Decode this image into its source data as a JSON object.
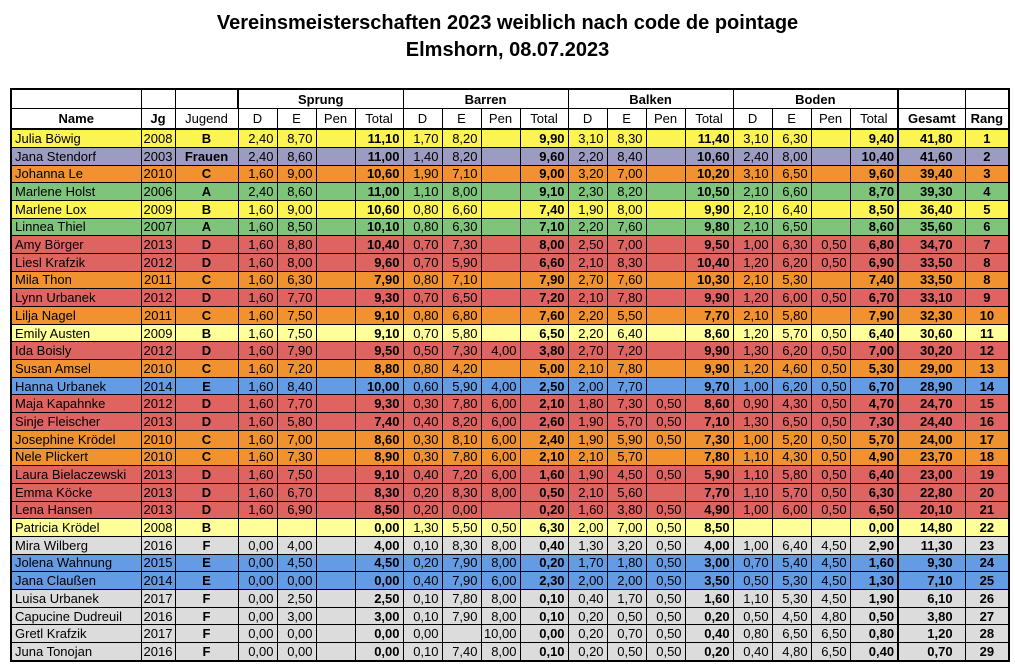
{
  "title": {
    "line1": "Vereinsmeisterschaften 2023 weiblich nach code de pointage",
    "line2": "Elmshorn, 08.07.2023"
  },
  "colors": {
    "yellow": "#FCF452",
    "light_yellow": "#FFFF99",
    "purple": "#9C9BC2",
    "orange": "#F0922F",
    "green": "#7EC47B",
    "red": "#DE6361",
    "blue": "#649BE5",
    "gray": "#DCDCDC"
  },
  "table": {
    "headers": {
      "name": "Name",
      "jg": "Jg",
      "jugend": "Jugend",
      "groups": [
        "Sprung",
        "Barren",
        "Balken",
        "Boden"
      ],
      "subs": [
        "D",
        "E",
        "Pen",
        "Total"
      ],
      "gesamt": "Gesamt",
      "rang": "Rang"
    },
    "rows": [
      {
        "name": "Julia Böwig",
        "jg": "2008",
        "jugend": "B",
        "color": "yellow",
        "scores": [
          [
            "2,40",
            "8,70",
            "",
            "11,10"
          ],
          [
            "1,70",
            "8,20",
            "",
            "9,90"
          ],
          [
            "3,10",
            "8,30",
            "",
            "11,40"
          ],
          [
            "3,10",
            "6,30",
            "",
            "9,40"
          ]
        ],
        "gesamt": "41,80",
        "rang": "1"
      },
      {
        "name": "Jana Stendorf",
        "jg": "2003",
        "jugend": "Frauen",
        "color": "purple",
        "scores": [
          [
            "2,40",
            "8,60",
            "",
            "11,00"
          ],
          [
            "1,40",
            "8,20",
            "",
            "9,60"
          ],
          [
            "2,20",
            "8,40",
            "",
            "10,60"
          ],
          [
            "2,40",
            "8,00",
            "",
            "10,40"
          ]
        ],
        "gesamt": "41,60",
        "rang": "2"
      },
      {
        "name": "Johanna Le",
        "jg": "2010",
        "jugend": "C",
        "color": "orange",
        "scores": [
          [
            "1,60",
            "9,00",
            "",
            "10,60"
          ],
          [
            "1,90",
            "7,10",
            "",
            "9,00"
          ],
          [
            "3,20",
            "7,00",
            "",
            "10,20"
          ],
          [
            "3,10",
            "6,50",
            "",
            "9,60"
          ]
        ],
        "gesamt": "39,40",
        "rang": "3"
      },
      {
        "name": "Marlene Holst",
        "jg": "2006",
        "jugend": "A",
        "color": "green",
        "scores": [
          [
            "2,40",
            "8,60",
            "",
            "11,00"
          ],
          [
            "1,10",
            "8,00",
            "",
            "9,10"
          ],
          [
            "2,30",
            "8,20",
            "",
            "10,50"
          ],
          [
            "2,10",
            "6,60",
            "",
            "8,70"
          ]
        ],
        "gesamt": "39,30",
        "rang": "4"
      },
      {
        "name": "Marlene Lox",
        "jg": "2009",
        "jugend": "B",
        "color": "yellow",
        "scores": [
          [
            "1,60",
            "9,00",
            "",
            "10,60"
          ],
          [
            "0,80",
            "6,60",
            "",
            "7,40"
          ],
          [
            "1,90",
            "8,00",
            "",
            "9,90"
          ],
          [
            "2,10",
            "6,40",
            "",
            "8,50"
          ]
        ],
        "gesamt": "36,40",
        "rang": "5"
      },
      {
        "name": "Linnea Thiel",
        "jg": "2007",
        "jugend": "A",
        "color": "green",
        "scores": [
          [
            "1,60",
            "8,50",
            "",
            "10,10"
          ],
          [
            "0,80",
            "6,30",
            "",
            "7,10"
          ],
          [
            "2,20",
            "7,60",
            "",
            "9,80"
          ],
          [
            "2,10",
            "6,50",
            "",
            "8,60"
          ]
        ],
        "gesamt": "35,60",
        "rang": "6"
      },
      {
        "name": "Amy Börger",
        "jg": "2013",
        "jugend": "D",
        "color": "red",
        "scores": [
          [
            "1,60",
            "8,80",
            "",
            "10,40"
          ],
          [
            "0,70",
            "7,30",
            "",
            "8,00"
          ],
          [
            "2,50",
            "7,00",
            "",
            "9,50"
          ],
          [
            "1,00",
            "6,30",
            "0,50",
            "6,80"
          ]
        ],
        "gesamt": "34,70",
        "rang": "7"
      },
      {
        "name": "Liesl Krafzik",
        "jg": "2012",
        "jugend": "D",
        "color": "red",
        "scores": [
          [
            "1,60",
            "8,00",
            "",
            "9,60"
          ],
          [
            "0,70",
            "5,90",
            "",
            "6,60"
          ],
          [
            "2,10",
            "8,30",
            "",
            "10,40"
          ],
          [
            "1,20",
            "6,20",
            "0,50",
            "6,90"
          ]
        ],
        "gesamt": "33,50",
        "rang": "8"
      },
      {
        "name": "Mila Thon",
        "jg": "2011",
        "jugend": "C",
        "color": "orange",
        "scores": [
          [
            "1,60",
            "6,30",
            "",
            "7,90"
          ],
          [
            "0,80",
            "7,10",
            "",
            "7,90"
          ],
          [
            "2,70",
            "7,60",
            "",
            "10,30"
          ],
          [
            "2,10",
            "5,30",
            "",
            "7,40"
          ]
        ],
        "gesamt": "33,50",
        "rang": "8"
      },
      {
        "name": "Lynn Urbanek",
        "jg": "2012",
        "jugend": "D",
        "color": "red",
        "scores": [
          [
            "1,60",
            "7,70",
            "",
            "9,30"
          ],
          [
            "0,70",
            "6,50",
            "",
            "7,20"
          ],
          [
            "2,10",
            "7,80",
            "",
            "9,90"
          ],
          [
            "1,20",
            "6,00",
            "0,50",
            "6,70"
          ]
        ],
        "gesamt": "33,10",
        "rang": "9"
      },
      {
        "name": "Lilja Nagel",
        "jg": "2011",
        "jugend": "C",
        "color": "orange",
        "scores": [
          [
            "1,60",
            "7,50",
            "",
            "9,10"
          ],
          [
            "0,80",
            "6,80",
            "",
            "7,60"
          ],
          [
            "2,20",
            "5,50",
            "",
            "7,70"
          ],
          [
            "2,10",
            "5,80",
            "",
            "7,90"
          ]
        ],
        "gesamt": "32,30",
        "rang": "10"
      },
      {
        "name": "Emily Austen",
        "jg": "2009",
        "jugend": "B",
        "color": "light_yellow",
        "scores": [
          [
            "1,60",
            "7,50",
            "",
            "9,10"
          ],
          [
            "0,70",
            "5,80",
            "",
            "6,50"
          ],
          [
            "2,20",
            "6,40",
            "",
            "8,60"
          ],
          [
            "1,20",
            "5,70",
            "0,50",
            "6,40"
          ]
        ],
        "gesamt": "30,60",
        "rang": "11"
      },
      {
        "name": "Ida Boisly",
        "jg": "2012",
        "jugend": "D",
        "color": "red",
        "scores": [
          [
            "1,60",
            "7,90",
            "",
            "9,50"
          ],
          [
            "0,50",
            "7,30",
            "4,00",
            "3,80"
          ],
          [
            "2,70",
            "7,20",
            "",
            "9,90"
          ],
          [
            "1,30",
            "6,20",
            "0,50",
            "7,00"
          ]
        ],
        "gesamt": "30,20",
        "rang": "12"
      },
      {
        "name": "Susan Amsel",
        "jg": "2010",
        "jugend": "C",
        "color": "orange",
        "scores": [
          [
            "1,60",
            "7,20",
            "",
            "8,80"
          ],
          [
            "0,80",
            "4,20",
            "",
            "5,00"
          ],
          [
            "2,10",
            "7,80",
            "",
            "9,90"
          ],
          [
            "1,20",
            "4,60",
            "0,50",
            "5,30"
          ]
        ],
        "gesamt": "29,00",
        "rang": "13"
      },
      {
        "name": "Hanna Urbanek",
        "jg": "2014",
        "jugend": "E",
        "color": "blue",
        "scores": [
          [
            "1,60",
            "8,40",
            "",
            "10,00"
          ],
          [
            "0,60",
            "5,90",
            "4,00",
            "2,50"
          ],
          [
            "2,00",
            "7,70",
            "",
            "9,70"
          ],
          [
            "1,00",
            "6,20",
            "0,50",
            "6,70"
          ]
        ],
        "gesamt": "28,90",
        "rang": "14"
      },
      {
        "name": "Maja Kapahnke",
        "jg": "2012",
        "jugend": "D",
        "color": "red",
        "scores": [
          [
            "1,60",
            "7,70",
            "",
            "9,30"
          ],
          [
            "0,30",
            "7,80",
            "6,00",
            "2,10"
          ],
          [
            "1,80",
            "7,30",
            "0,50",
            "8,60"
          ],
          [
            "0,90",
            "4,30",
            "0,50",
            "4,70"
          ]
        ],
        "gesamt": "24,70",
        "rang": "15"
      },
      {
        "name": "Sinje Fleischer",
        "jg": "2013",
        "jugend": "D",
        "color": "red",
        "scores": [
          [
            "1,60",
            "5,80",
            "",
            "7,40"
          ],
          [
            "0,40",
            "8,20",
            "6,00",
            "2,60"
          ],
          [
            "1,90",
            "5,70",
            "0,50",
            "7,10"
          ],
          [
            "1,30",
            "6,50",
            "0,50",
            "7,30"
          ]
        ],
        "gesamt": "24,40",
        "rang": "16"
      },
      {
        "name": "Josephine Krödel",
        "jg": "2010",
        "jugend": "C",
        "color": "orange",
        "scores": [
          [
            "1,60",
            "7,00",
            "",
            "8,60"
          ],
          [
            "0,30",
            "8,10",
            "6,00",
            "2,40"
          ],
          [
            "1,90",
            "5,90",
            "0,50",
            "7,30"
          ],
          [
            "1,00",
            "5,20",
            "0,50",
            "5,70"
          ]
        ],
        "gesamt": "24,00",
        "rang": "17"
      },
      {
        "name": "Nele Plickert",
        "jg": "2010",
        "jugend": "C",
        "color": "orange",
        "scores": [
          [
            "1,60",
            "7,30",
            "",
            "8,90"
          ],
          [
            "0,30",
            "7,80",
            "6,00",
            "2,10"
          ],
          [
            "2,10",
            "5,70",
            "",
            "7,80"
          ],
          [
            "1,10",
            "4,30",
            "0,50",
            "4,90"
          ]
        ],
        "gesamt": "23,70",
        "rang": "18"
      },
      {
        "name": "Laura Bielaczewski",
        "jg": "2013",
        "jugend": "D",
        "color": "red",
        "scores": [
          [
            "1,60",
            "7,50",
            "",
            "9,10"
          ],
          [
            "0,40",
            "7,20",
            "6,00",
            "1,60"
          ],
          [
            "1,90",
            "4,50",
            "0,50",
            "5,90"
          ],
          [
            "1,10",
            "5,80",
            "0,50",
            "6,40"
          ]
        ],
        "gesamt": "23,00",
        "rang": "19"
      },
      {
        "name": "Emma Köcke",
        "jg": "2013",
        "jugend": "D",
        "color": "red",
        "scores": [
          [
            "1,60",
            "6,70",
            "",
            "8,30"
          ],
          [
            "0,20",
            "8,30",
            "8,00",
            "0,50"
          ],
          [
            "2,10",
            "5,60",
            "",
            "7,70"
          ],
          [
            "1,10",
            "5,70",
            "0,50",
            "6,30"
          ]
        ],
        "gesamt": "22,80",
        "rang": "20"
      },
      {
        "name": "Lena Hansen",
        "jg": "2013",
        "jugend": "D",
        "color": "red",
        "scores": [
          [
            "1,60",
            "6,90",
            "",
            "8,50"
          ],
          [
            "0,20",
            "0,00",
            "",
            "0,20"
          ],
          [
            "1,60",
            "3,80",
            "0,50",
            "4,90"
          ],
          [
            "1,00",
            "6,00",
            "0,50",
            "6,50"
          ]
        ],
        "gesamt": "20,10",
        "rang": "21"
      },
      {
        "name": "Patricia Krödel",
        "jg": "2008",
        "jugend": "B",
        "color": "light_yellow",
        "scores": [
          [
            "",
            "",
            "",
            "0,00"
          ],
          [
            "1,30",
            "5,50",
            "0,50",
            "6,30"
          ],
          [
            "2,00",
            "7,00",
            "0,50",
            "8,50"
          ],
          [
            "",
            "",
            "",
            "0,00"
          ]
        ],
        "gesamt": "14,80",
        "rang": "22"
      },
      {
        "name": "Mira Wilberg",
        "jg": "2016",
        "jugend": "F",
        "color": "gray",
        "scores": [
          [
            "0,00",
            "4,00",
            "",
            "4,00"
          ],
          [
            "0,10",
            "8,30",
            "8,00",
            "0,40"
          ],
          [
            "1,30",
            "3,20",
            "0,50",
            "4,00"
          ],
          [
            "1,00",
            "6,40",
            "4,50",
            "2,90"
          ]
        ],
        "gesamt": "11,30",
        "rang": "23"
      },
      {
        "name": "Jolena Wahnung",
        "jg": "2015",
        "jugend": "E",
        "color": "blue",
        "scores": [
          [
            "0,00",
            "4,50",
            "",
            "4,50"
          ],
          [
            "0,20",
            "7,90",
            "8,00",
            "0,20"
          ],
          [
            "1,70",
            "1,80",
            "0,50",
            "3,00"
          ],
          [
            "0,70",
            "5,40",
            "4,50",
            "1,60"
          ]
        ],
        "gesamt": "9,30",
        "rang": "24"
      },
      {
        "name": "Jana Claußen",
        "jg": "2014",
        "jugend": "E",
        "color": "blue",
        "scores": [
          [
            "0,00",
            "0,00",
            "",
            "0,00"
          ],
          [
            "0,40",
            "7,90",
            "6,00",
            "2,30"
          ],
          [
            "2,00",
            "2,00",
            "0,50",
            "3,50"
          ],
          [
            "0,50",
            "5,30",
            "4,50",
            "1,30"
          ]
        ],
        "gesamt": "7,10",
        "rang": "25"
      },
      {
        "name": "Luisa Urbanek",
        "jg": "2017",
        "jugend": "F",
        "color": "gray",
        "scores": [
          [
            "0,00",
            "2,50",
            "",
            "2,50"
          ],
          [
            "0,10",
            "7,80",
            "8,00",
            "0,10"
          ],
          [
            "0,40",
            "1,70",
            "0,50",
            "1,60"
          ],
          [
            "1,10",
            "5,30",
            "4,50",
            "1,90"
          ]
        ],
        "gesamt": "6,10",
        "rang": "26"
      },
      {
        "name": "Capucine Dudreuil",
        "jg": "2016",
        "jugend": "F",
        "color": "gray",
        "scores": [
          [
            "0,00",
            "3,00",
            "",
            "3,00"
          ],
          [
            "0,10",
            "7,90",
            "8,00",
            "0,10"
          ],
          [
            "0,20",
            "0,50",
            "0,50",
            "0,20"
          ],
          [
            "0,50",
            "4,50",
            "4,80",
            "0,50"
          ]
        ],
        "gesamt": "3,80",
        "rang": "27"
      },
      {
        "name": "Gretl Krafzik",
        "jg": "2017",
        "jugend": "F",
        "color": "gray",
        "scores": [
          [
            "0,00",
            "0,00",
            "",
            "0,00"
          ],
          [
            "0,00",
            "",
            "10,00",
            "0,00"
          ],
          [
            "0,20",
            "0,70",
            "0,50",
            "0,40"
          ],
          [
            "0,80",
            "6,50",
            "6,50",
            "0,80"
          ]
        ],
        "gesamt": "1,20",
        "rang": "28"
      },
      {
        "name": "Juna Tonojan",
        "jg": "2016",
        "jugend": "F",
        "color": "gray",
        "scores": [
          [
            "0,00",
            "0,00",
            "",
            "0,00"
          ],
          [
            "0,10",
            "7,40",
            "8,00",
            "0,10"
          ],
          [
            "0,20",
            "0,50",
            "0,50",
            "0,20"
          ],
          [
            "0,40",
            "4,80",
            "6,50",
            "0,40"
          ]
        ],
        "gesamt": "0,70",
        "rang": "29"
      }
    ]
  }
}
